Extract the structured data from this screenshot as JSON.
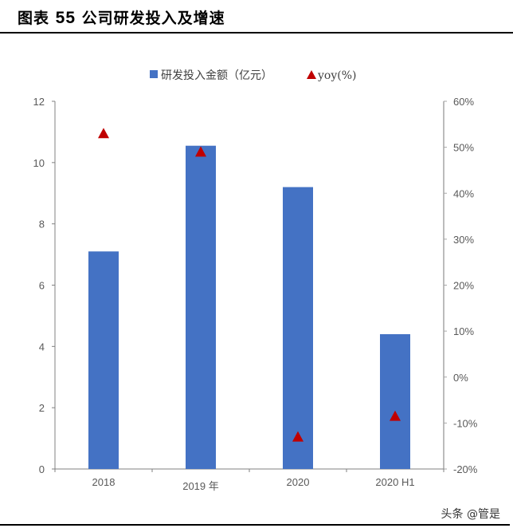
{
  "header": {
    "figure_label": "图表",
    "figure_number": "55",
    "title": "公司研发投入及增速"
  },
  "legend": {
    "bar_label": "研发投入金额（亿元）",
    "marker_label": "yoy(%)"
  },
  "colors": {
    "bar": "#4472C4",
    "marker": "#C00000",
    "axis": "#808080",
    "text": "#595959"
  },
  "watermark": "头条 @管是",
  "chart_data": {
    "type": "bar",
    "title": "公司研发投入及增速",
    "categories": [
      "2018",
      "2019 年",
      "2020",
      "2020 H1"
    ],
    "series": [
      {
        "name": "研发投入金额（亿元）",
        "type": "bar",
        "axis": "left",
        "values": [
          7.1,
          10.55,
          9.2,
          4.4
        ]
      },
      {
        "name": "yoy(%)",
        "type": "scatter",
        "marker": "triangle",
        "axis": "right",
        "values": [
          53,
          49,
          -13,
          -8.5
        ]
      }
    ],
    "left_axis": {
      "min": 0,
      "max": 12,
      "ticks": [
        "0",
        "2",
        "4",
        "6",
        "8",
        "10",
        "12"
      ]
    },
    "right_axis": {
      "min": -20,
      "max": 60,
      "ticks": [
        "-20%",
        "-10%",
        "0%",
        "10%",
        "20%",
        "30%",
        "40%",
        "50%",
        "60%"
      ]
    },
    "xlabel": "",
    "ylabel": "",
    "grid": false,
    "legend_position": "top"
  }
}
